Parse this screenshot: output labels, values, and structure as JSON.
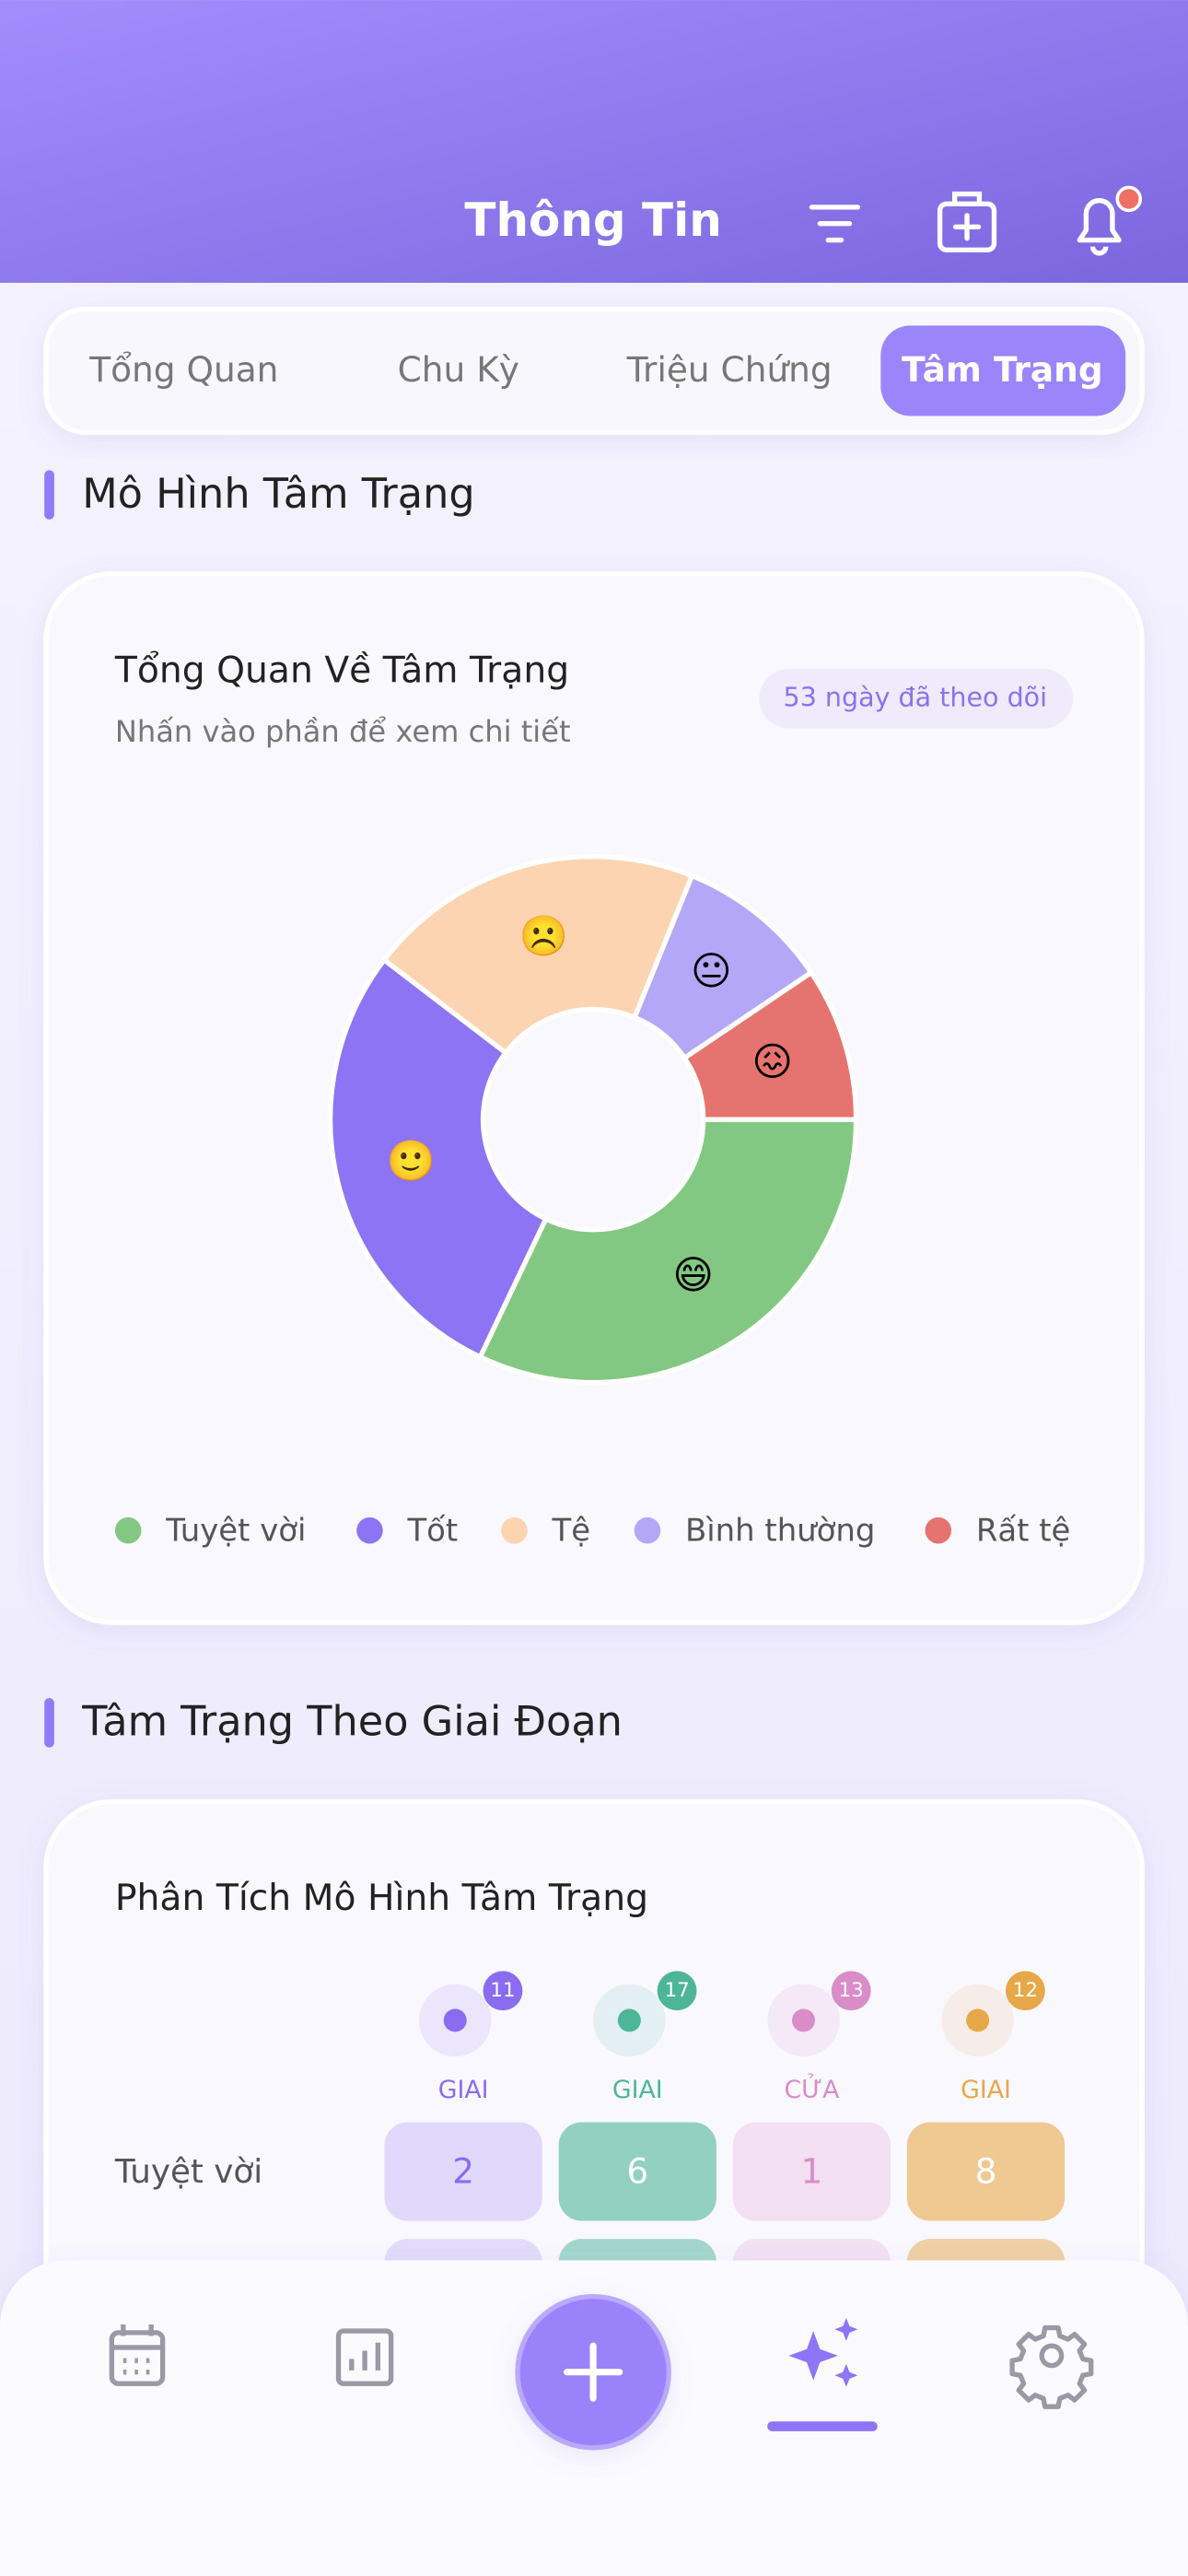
{
  "header": {
    "title": "Thông Tin"
  },
  "tabs": [
    "Tổng Quan",
    "Chu Kỳ",
    "Triệu Chứng",
    "Tâm Trạng"
  ],
  "active_tab": 3,
  "sections": [
    "Mô Hình Tâm Trạng",
    "Tâm Trạng Theo Giai Đoạn"
  ],
  "mood_card": {
    "title": "Tổng Quan Về Tâm Trạng",
    "subtitle": "Nhấn vào phần để xem chi tiết",
    "badge": "53 ngày đã theo dõi"
  },
  "chart_data": {
    "type": "pie",
    "categories": [
      "Tuyệt vời",
      "Tốt",
      "Tệ",
      "Bình thường",
      "Rất tệ"
    ],
    "values": [
      17,
      15,
      11,
      5,
      5
    ],
    "colors": [
      "#83c882",
      "#8c74f5",
      "#fdd4b1",
      "#b4a7f8",
      "#e5736f"
    ],
    "emojis": [
      "😄",
      "🙂",
      "☹️",
      "😐",
      "😖"
    ],
    "legend": "bottom"
  },
  "analysis": {
    "title": "Phân Tích Mô Hình Tâm Trạng",
    "phases": [
      {
        "label": "GIAI",
        "count": 11,
        "color": "#8a6cf0"
      },
      {
        "label": "GIAI",
        "count": 17,
        "color": "#4db699"
      },
      {
        "label": "CỬA",
        "count": 13,
        "color": "#d98cc8"
      },
      {
        "label": "GIAI",
        "count": 12,
        "color": "#e7a84a"
      }
    ],
    "rows": [
      {
        "label": "Tuyệt vời",
        "values": [
          2,
          6,
          1,
          8
        ]
      }
    ]
  }
}
